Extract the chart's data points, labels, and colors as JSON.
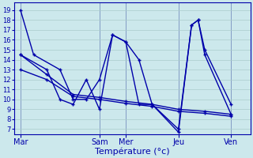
{
  "background_color": "#cce8ec",
  "grid_color": "#aacccc",
  "line_color": "#0000aa",
  "xlabel": "Température (°c)",
  "yticks": [
    7,
    8,
    9,
    10,
    11,
    12,
    13,
    14,
    15,
    16,
    17,
    18,
    19
  ],
  "ylim": [
    6.5,
    19.8
  ],
  "xlim": [
    0,
    36
  ],
  "day_ticks_x": [
    1,
    13,
    17,
    25,
    33
  ],
  "day_labels": [
    "Mar",
    "Sam",
    "Mer",
    "Jeu",
    "Ven"
  ],
  "series1_x": [
    1,
    3,
    7,
    9,
    11,
    13,
    15,
    17,
    19,
    21,
    25,
    27,
    28,
    29,
    33
  ],
  "series1_y": [
    19,
    14.5,
    13,
    10,
    10,
    12,
    16.5,
    15.8,
    14,
    9.5,
    7.0,
    17.5,
    18.0,
    15.0,
    9.5
  ],
  "series2_x": [
    1,
    5,
    7,
    9,
    11,
    13,
    15,
    17,
    19,
    21,
    25,
    27,
    28,
    29,
    33
  ],
  "series2_y": [
    14.5,
    13,
    10,
    9.5,
    12,
    9.0,
    16.5,
    15.8,
    9.5,
    9.5,
    6.7,
    17.5,
    18.0,
    14.5,
    8.5
  ],
  "series3_x": [
    1,
    5,
    9,
    13,
    17,
    21,
    25,
    29,
    33
  ],
  "series3_y": [
    14.5,
    12.5,
    10.5,
    10.2,
    9.8,
    9.5,
    9.0,
    8.8,
    8.5
  ],
  "series4_x": [
    1,
    5,
    9,
    13,
    17,
    21,
    25,
    29,
    33
  ],
  "series4_y": [
    13.0,
    12.0,
    10.3,
    10.0,
    9.6,
    9.3,
    8.8,
    8.6,
    8.3
  ]
}
